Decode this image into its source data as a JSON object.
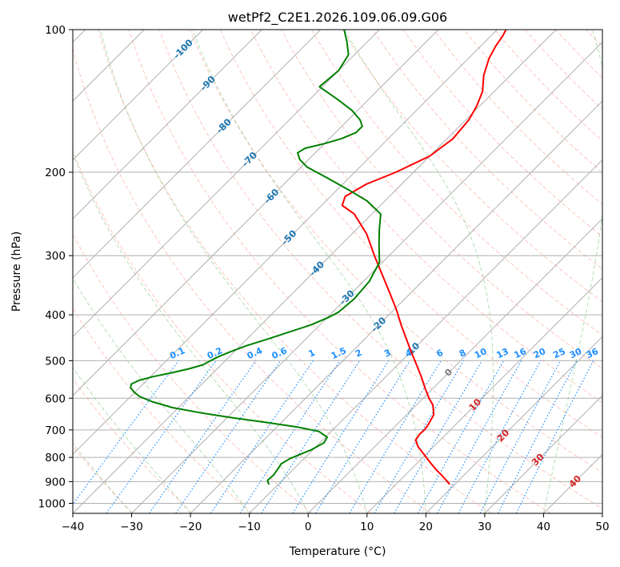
{
  "chart_data": {
    "type": "skew-t",
    "title": "wetPf2_C2E1.2026.109.06.09.G06",
    "xlabel": "Temperature (°C)",
    "ylabel": "Pressure (hPa)",
    "xlim": [
      -40,
      50
    ],
    "ylim": [
      1050,
      100
    ],
    "x_ticks": [
      -40,
      -30,
      -20,
      -10,
      0,
      10,
      20,
      30,
      40,
      50
    ],
    "x_tick_labels": [
      "−40",
      "−30",
      "−20",
      "−10",
      "0",
      "10",
      "20",
      "30",
      "40",
      "50"
    ],
    "y_ticks": [
      1000,
      900,
      800,
      700,
      600,
      500,
      400,
      300,
      200,
      100
    ],
    "y_tick_labels": [
      "1000",
      "900",
      "800",
      "700",
      "600",
      "500",
      "400",
      "300",
      "200",
      "100"
    ],
    "grid": true,
    "isotherms": [
      -140,
      -130,
      -120,
      -110,
      -100,
      -90,
      -80,
      -70,
      -60,
      -50,
      -40,
      -30,
      -20,
      -10,
      0,
      10,
      20,
      30,
      40,
      50
    ],
    "isotherm_labels": [
      {
        "t": -100,
        "p": 110,
        "text": "-100"
      },
      {
        "t": -90,
        "p": 130,
        "text": "-90"
      },
      {
        "t": -80,
        "p": 160,
        "text": "-80"
      },
      {
        "t": -70,
        "p": 188,
        "text": "-70"
      },
      {
        "t": -60,
        "p": 225,
        "text": "-60"
      },
      {
        "t": -50,
        "p": 275,
        "text": "-50"
      },
      {
        "t": -40,
        "p": 320,
        "text": "-40"
      },
      {
        "t": -30,
        "p": 368,
        "text": "-30"
      },
      {
        "t": -20,
        "p": 420,
        "text": "-20"
      },
      {
        "t": -10,
        "p": 475,
        "text": "-10"
      },
      {
        "t": 0,
        "p": 530,
        "text": "0"
      },
      {
        "t": 10,
        "p": 620,
        "text": "10"
      },
      {
        "t": 20,
        "p": 720,
        "text": "20"
      },
      {
        "t": 30,
        "p": 810,
        "text": "30"
      },
      {
        "t": 40,
        "p": 900,
        "text": "40"
      }
    ],
    "mixing_ratios": [
      0.1,
      0.2,
      0.4,
      0.6,
      1,
      1.5,
      2,
      3,
      4,
      6,
      8,
      10,
      13,
      16,
      20,
      25,
      30,
      36
    ],
    "mixing_ratio_labels": [
      "0.1",
      "0.2",
      "0.4",
      "0.6",
      "1",
      "1.5",
      "2",
      "3",
      "4",
      "6",
      "8",
      "10",
      "13",
      "16",
      "20",
      "25",
      "30",
      "36"
    ],
    "dry_adiabats_theta": [
      200,
      210,
      220,
      230,
      240,
      250,
      260,
      270,
      280,
      290,
      300,
      310,
      320,
      330,
      340,
      350,
      360,
      370,
      380,
      390,
      400,
      410,
      420,
      430,
      440,
      450,
      460
    ],
    "moist_adiabats_surface_t": [
      -30,
      -20,
      -10,
      0,
      10,
      20,
      30,
      40
    ],
    "colors": {
      "temperature": "#ff0000",
      "dewpoint": "#008000",
      "isotherm": "#1f77b4",
      "isotherm_warm_label": "#d62728",
      "isotherm_zero_label": "#808080",
      "mixing_ratio": "#1e90ff",
      "dry_adiabat": "#fa8072",
      "moist_adiabat": "#2ca02c",
      "grid": "#b0b0b0"
    },
    "series": [
      {
        "name": "Temperature",
        "p": [
          910,
          880,
          850,
          820,
          790,
          760,
          735,
          715,
          700,
          680,
          650,
          620,
          600,
          570,
          540,
          510,
          480,
          450,
          420,
          390,
          360,
          330,
          300,
          270,
          245,
          235,
          225,
          212,
          200,
          185,
          170,
          155,
          145,
          135,
          125,
          115,
          108,
          103,
          100
        ],
        "t": [
          19,
          16.8,
          14.4,
          12.1,
          9.8,
          7.4,
          5.8,
          5.5,
          5.6,
          5.3,
          4.6,
          2.8,
          1.0,
          -1.5,
          -4.0,
          -6.8,
          -9.8,
          -12.9,
          -16.2,
          -19.6,
          -23.5,
          -27.8,
          -32.5,
          -37.5,
          -43.0,
          -46.5,
          -47.5,
          -46.0,
          -43.0,
          -40.0,
          -39.0,
          -39.5,
          -40.5,
          -42.0,
          -44.5,
          -46.5,
          -47.5,
          -48.0,
          -48.5
        ]
      },
      {
        "name": "Dewpoint",
        "p": [
          910,
          895,
          870,
          845,
          825,
          805,
          790,
          770,
          745,
          725,
          705,
          690,
          675,
          660,
          645,
          628,
          610,
          595,
          582,
          570,
          560,
          550,
          540,
          530,
          520,
          510,
          500,
          490,
          478,
          465,
          450,
          435,
          420,
          405,
          395,
          370,
          340,
          310,
          285,
          265,
          245,
          230,
          218,
          205,
          195,
          188,
          182,
          178,
          174,
          170,
          165,
          160,
          155,
          148,
          140,
          132,
          122,
          113,
          106,
          100
        ],
        "t": [
          -11.7,
          -12.5,
          -12.4,
          -12.7,
          -13.0,
          -12.4,
          -11.5,
          -10.2,
          -9.3,
          -9.7,
          -12.1,
          -16.5,
          -22.5,
          -29.0,
          -35.0,
          -41.0,
          -45.5,
          -48.5,
          -50.2,
          -51.5,
          -52.0,
          -51.3,
          -49.5,
          -47.0,
          -44.8,
          -43.1,
          -42.5,
          -41.8,
          -40.6,
          -39.0,
          -36.5,
          -34.0,
          -31.5,
          -29.8,
          -29.0,
          -28.6,
          -29.0,
          -30.5,
          -33.5,
          -36.0,
          -38.5,
          -43.0,
          -48.0,
          -54.0,
          -59.0,
          -61.5,
          -63.0,
          -62.5,
          -60.0,
          -58.0,
          -56.5,
          -56.5,
          -58.0,
          -61.0,
          -65.5,
          -70.5,
          -70.0,
          -71.0,
          -73.5,
          -76.0
        ]
      }
    ]
  }
}
